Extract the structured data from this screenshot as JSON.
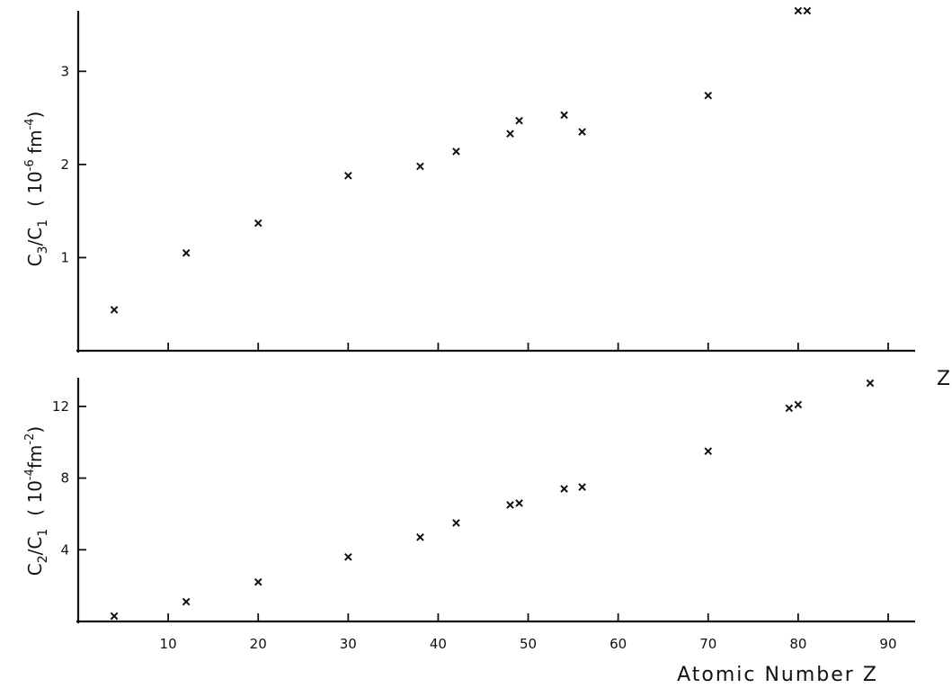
{
  "chart_data": [
    {
      "type": "scatter",
      "panel": "top",
      "ylabel": {
        "main": "C",
        "sub1": "3",
        "slash": "/C",
        "sub2": "1",
        "unit_pre": "( 10",
        "unit_exp": "-6",
        "unit_mid": " fm",
        "unit_exp2": "-4",
        "unit_post": ")"
      },
      "y_ticks": [
        "1",
        "2",
        "3"
      ],
      "y_tick_values": [
        1,
        2,
        3
      ],
      "ylim": [
        0,
        3.65
      ],
      "xlim": [
        0,
        93
      ],
      "x_end_label": "Z",
      "series": [
        {
          "marker": "x",
          "x": [
            4,
            12,
            20,
            30,
            38,
            42,
            48,
            49,
            54,
            56,
            70,
            80,
            81
          ],
          "y": [
            0.44,
            1.05,
            1.37,
            1.88,
            1.98,
            2.14,
            2.33,
            2.47,
            2.53,
            2.35,
            2.74,
            3.65,
            3.65
          ]
        }
      ]
    },
    {
      "type": "scatter",
      "panel": "bottom",
      "ylabel": {
        "main": "C",
        "sub1": "2",
        "slash": "/C",
        "sub2": "1",
        "unit_pre": "( 10",
        "unit_exp": "-4",
        "unit_mid": "fm",
        "unit_exp2": "-2",
        "unit_post": ")"
      },
      "y_ticks": [
        "4",
        "8",
        "12"
      ],
      "y_tick_values": [
        4,
        8,
        12
      ],
      "ylim": [
        0,
        13.6
      ],
      "xlim": [
        0,
        93
      ],
      "x_ticks": [
        "10",
        "20",
        "30",
        "40",
        "50",
        "60",
        "70",
        "80",
        "90"
      ],
      "x_tick_values": [
        10,
        20,
        30,
        40,
        50,
        60,
        70,
        80,
        90
      ],
      "xlabel": "Atomic Number Z",
      "series": [
        {
          "marker": "x",
          "x": [
            4,
            12,
            20,
            30,
            38,
            42,
            48,
            49,
            54,
            56,
            70,
            79,
            80,
            88
          ],
          "y": [
            0.3,
            1.1,
            2.2,
            3.6,
            4.7,
            5.5,
            6.5,
            6.6,
            7.4,
            7.5,
            9.5,
            11.9,
            12.1,
            13.3
          ]
        }
      ]
    }
  ]
}
